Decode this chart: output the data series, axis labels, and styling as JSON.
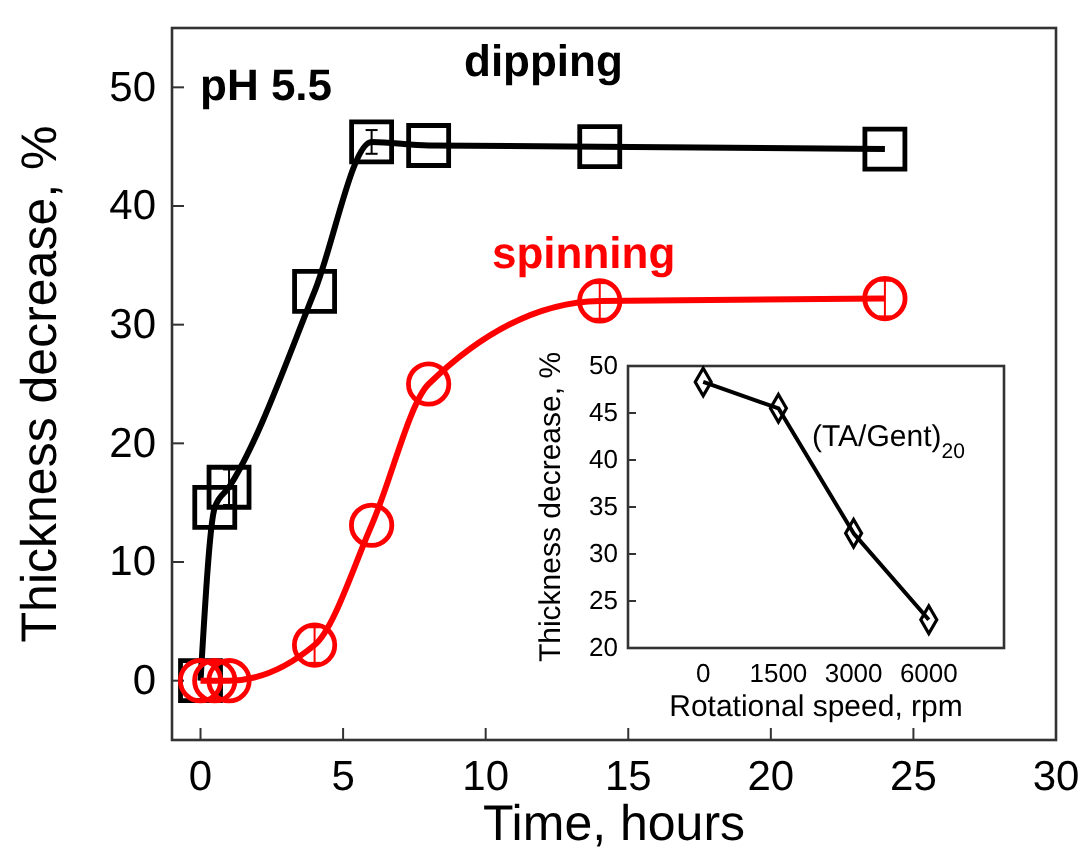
{
  "chart_data": [
    {
      "type": "line",
      "xlabel": "Time, hours",
      "ylabel": "Thickness decrease, %",
      "annotations": [
        "pH 5.5"
      ],
      "xlim": [
        -1,
        30
      ],
      "xticks": [
        0,
        5,
        10,
        15,
        20,
        25,
        30
      ],
      "ylim": [
        -5,
        55
      ],
      "yticks": [
        0,
        10,
        20,
        30,
        40,
        50
      ],
      "grid": false,
      "line_style": "solid",
      "series": [
        {
          "name": "dipping",
          "color": "#000000",
          "marker": "square",
          "x": [
            0,
            0.5,
            1,
            4,
            6,
            8,
            14,
            24
          ],
          "values": [
            0,
            14.6,
            16.3,
            32.8,
            45.4,
            45.1,
            45,
            44.8
          ],
          "errors": [
            null,
            null,
            1.5,
            null,
            1,
            null,
            null,
            null
          ]
        },
        {
          "name": "spinning",
          "color": "#ff0000",
          "marker": "circle",
          "x": [
            0,
            0.5,
            1,
            4,
            6,
            8,
            14,
            24
          ],
          "values": [
            0,
            0,
            0,
            3,
            13.1,
            25,
            32,
            32.2
          ],
          "errors": [
            null,
            null,
            null,
            1.5,
            null,
            null,
            1.5,
            1.5
          ]
        }
      ]
    },
    {
      "type": "line",
      "xlabel": "Rotational speed, rpm",
      "ylabel": "Thickness decrease, %",
      "annotations": [
        "(TA/Gent)$_{20}$"
      ],
      "categories": [
        "0",
        "1500",
        "3000",
        "6000"
      ],
      "ylim": [
        20,
        50
      ],
      "yticks": [
        20,
        25,
        30,
        35,
        40,
        45,
        50
      ],
      "grid": false,
      "marker": "diamond",
      "line_style": "solid",
      "series": [
        {
          "color": "#000000",
          "values": [
            48.3,
            45.5,
            32.2,
            23
          ]
        }
      ]
    }
  ]
}
